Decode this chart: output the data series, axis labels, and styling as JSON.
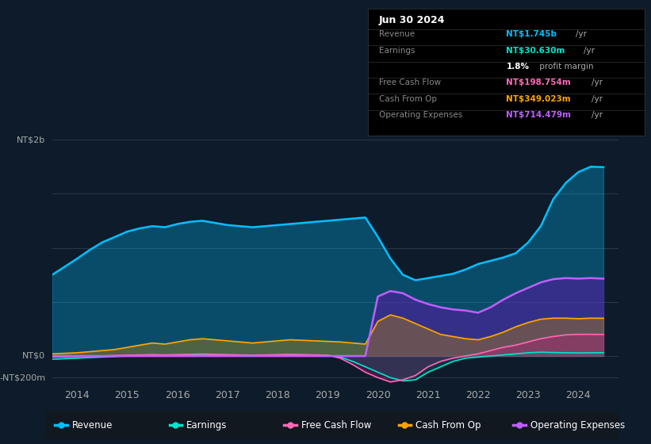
{
  "bg_color": "#0d1b2a",
  "plot_bg_color": "#0d1b2a",
  "title_box": {
    "date": "Jun 30 2024",
    "rows": [
      {
        "label": "Revenue",
        "value": "NT$1.745b",
        "unit": "/yr",
        "color": "#00bfff"
      },
      {
        "label": "Earnings",
        "value": "NT$30.630m",
        "unit": "/yr",
        "color": "#00e5cc"
      },
      {
        "label": "",
        "value": "1.8%",
        "unit": " profit margin",
        "color": "#ffffff"
      },
      {
        "label": "Free Cash Flow",
        "value": "NT$198.754m",
        "unit": "/yr",
        "color": "#ff69b4"
      },
      {
        "label": "Cash From Op",
        "value": "NT$349.023m",
        "unit": "/yr",
        "color": "#ffa500"
      },
      {
        "label": "Operating Expenses",
        "value": "NT$714.479m",
        "unit": "/yr",
        "color": "#bf5fff"
      }
    ]
  },
  "ylabel_top": "NT$2b",
  "y0_label": "NT$0",
  "yneg_label": "-NT$200m",
  "xlim": [
    2013.5,
    2024.8
  ],
  "ylim": [
    -280000000,
    2100000000
  ],
  "xticks": [
    2014,
    2015,
    2016,
    2017,
    2018,
    2019,
    2020,
    2021,
    2022,
    2023,
    2024
  ],
  "legend": [
    {
      "label": "Revenue",
      "color": "#00bfff"
    },
    {
      "label": "Earnings",
      "color": "#00e5cc"
    },
    {
      "label": "Free Cash Flow",
      "color": "#ff69b4"
    },
    {
      "label": "Cash From Op",
      "color": "#ffa500"
    },
    {
      "label": "Operating Expenses",
      "color": "#bf5fff"
    }
  ],
  "series": {
    "years": [
      2013.5,
      2014.0,
      2014.25,
      2014.5,
      2014.75,
      2015.0,
      2015.25,
      2015.5,
      2015.75,
      2016.0,
      2016.25,
      2016.5,
      2016.75,
      2017.0,
      2017.25,
      2017.5,
      2017.75,
      2018.0,
      2018.25,
      2018.5,
      2018.75,
      2019.0,
      2019.25,
      2019.5,
      2019.75,
      2020.0,
      2020.25,
      2020.5,
      2020.75,
      2021.0,
      2021.25,
      2021.5,
      2021.75,
      2022.0,
      2022.25,
      2022.5,
      2022.75,
      2023.0,
      2023.25,
      2023.5,
      2023.75,
      2024.0,
      2024.25,
      2024.5
    ],
    "revenue": [
      750000000,
      900000000,
      980000000,
      1050000000,
      1100000000,
      1150000000,
      1180000000,
      1200000000,
      1190000000,
      1220000000,
      1240000000,
      1250000000,
      1230000000,
      1210000000,
      1200000000,
      1190000000,
      1200000000,
      1210000000,
      1220000000,
      1230000000,
      1240000000,
      1250000000,
      1260000000,
      1270000000,
      1280000000,
      1100000000,
      900000000,
      750000000,
      700000000,
      720000000,
      740000000,
      760000000,
      800000000,
      850000000,
      880000000,
      910000000,
      950000000,
      1050000000,
      1200000000,
      1450000000,
      1600000000,
      1700000000,
      1750000000,
      1745000000
    ],
    "earnings": [
      -30000000,
      -20000000,
      -15000000,
      -10000000,
      -5000000,
      0,
      5000000,
      10000000,
      8000000,
      10000000,
      12000000,
      15000000,
      12000000,
      10000000,
      8000000,
      5000000,
      8000000,
      10000000,
      12000000,
      10000000,
      8000000,
      5000000,
      -10000000,
      -50000000,
      -100000000,
      -150000000,
      -200000000,
      -230000000,
      -220000000,
      -150000000,
      -100000000,
      -50000000,
      -20000000,
      -10000000,
      0,
      10000000,
      20000000,
      30000000,
      35000000,
      32000000,
      30000000,
      28000000,
      30000000,
      30630000
    ],
    "free_cash_flow": [
      -10000000,
      -5000000,
      -3000000,
      0,
      5000000,
      8000000,
      10000000,
      12000000,
      10000000,
      12000000,
      15000000,
      18000000,
      15000000,
      12000000,
      10000000,
      8000000,
      10000000,
      12000000,
      15000000,
      12000000,
      10000000,
      8000000,
      -20000000,
      -80000000,
      -150000000,
      -200000000,
      -240000000,
      -220000000,
      -180000000,
      -100000000,
      -50000000,
      -20000000,
      0,
      20000000,
      50000000,
      80000000,
      100000000,
      130000000,
      160000000,
      180000000,
      195000000,
      200000000,
      200000000,
      198754000
    ],
    "cash_from_op": [
      20000000,
      30000000,
      40000000,
      50000000,
      60000000,
      80000000,
      100000000,
      120000000,
      110000000,
      130000000,
      150000000,
      160000000,
      150000000,
      140000000,
      130000000,
      120000000,
      130000000,
      140000000,
      150000000,
      145000000,
      140000000,
      135000000,
      130000000,
      120000000,
      110000000,
      320000000,
      380000000,
      350000000,
      300000000,
      250000000,
      200000000,
      180000000,
      160000000,
      150000000,
      180000000,
      220000000,
      270000000,
      310000000,
      340000000,
      350000000,
      350000000,
      345000000,
      350000000,
      349023000
    ],
    "operating_expenses": [
      0,
      0,
      0,
      0,
      0,
      0,
      0,
      0,
      0,
      0,
      0,
      0,
      0,
      0,
      0,
      0,
      0,
      0,
      0,
      0,
      0,
      0,
      0,
      0,
      0,
      550000000,
      600000000,
      580000000,
      520000000,
      480000000,
      450000000,
      430000000,
      420000000,
      400000000,
      450000000,
      520000000,
      580000000,
      630000000,
      680000000,
      710000000,
      720000000,
      715000000,
      720000000,
      714479000
    ]
  }
}
